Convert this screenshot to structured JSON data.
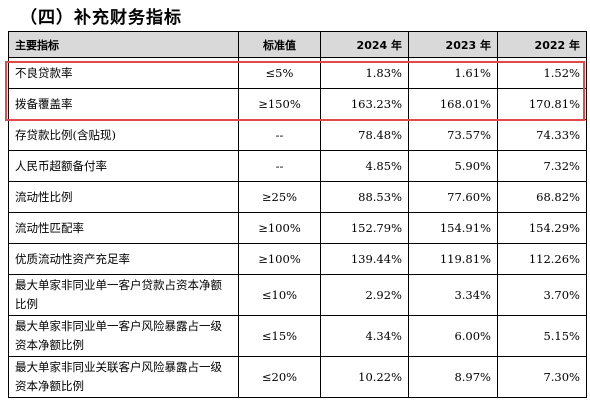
{
  "heading": "（四）补充财务指标",
  "table": {
    "headers": {
      "name": "主要指标",
      "standard": "标准值",
      "y2024": "2024 年",
      "y2023": "2023 年",
      "y2022": "2022 年"
    },
    "rows": [
      {
        "name": "不良贷款率",
        "standard": "≤5%",
        "y2024": "1.83%",
        "y2023": "1.61%",
        "y2022": "1.52%"
      },
      {
        "name": "拨备覆盖率",
        "standard": "≥150%",
        "y2024": "163.23%",
        "y2023": "168.01%",
        "y2022": "170.81%"
      },
      {
        "name": "存贷款比例(含贴现)",
        "standard": "--",
        "y2024": "78.48%",
        "y2023": "73.57%",
        "y2022": "74.33%"
      },
      {
        "name": "人民币超额备付率",
        "standard": "--",
        "y2024": "4.85%",
        "y2023": "5.90%",
        "y2022": "7.32%"
      },
      {
        "name": "流动性比例",
        "standard": "≥25%",
        "y2024": "88.53%",
        "y2023": "77.60%",
        "y2022": "68.82%"
      },
      {
        "name": "流动性匹配率",
        "standard": "≥100%",
        "y2024": "152.79%",
        "y2023": "154.91%",
        "y2022": "154.29%"
      },
      {
        "name": "优质流动性资产充足率",
        "standard": "≥100%",
        "y2024": "139.44%",
        "y2023": "119.81%",
        "y2022": "112.26%"
      },
      {
        "name": "最大单家非同业单一客户贷款占资本净额比例",
        "standard": "≤10%",
        "y2024": "2.92%",
        "y2023": "3.34%",
        "y2022": "3.70%"
      },
      {
        "name": "最大单家非同业单一客户风险暴露占一级资本净额比例",
        "standard": "≤15%",
        "y2024": "4.34%",
        "y2023": "6.00%",
        "y2022": "5.15%"
      },
      {
        "name": "最大单家非同业关联客户风险暴露占一级资本净额比例",
        "standard": "≤20%",
        "y2024": "10.22%",
        "y2023": "8.97%",
        "y2022": "7.30%"
      }
    ]
  },
  "highlight_color": "#e04a4a"
}
